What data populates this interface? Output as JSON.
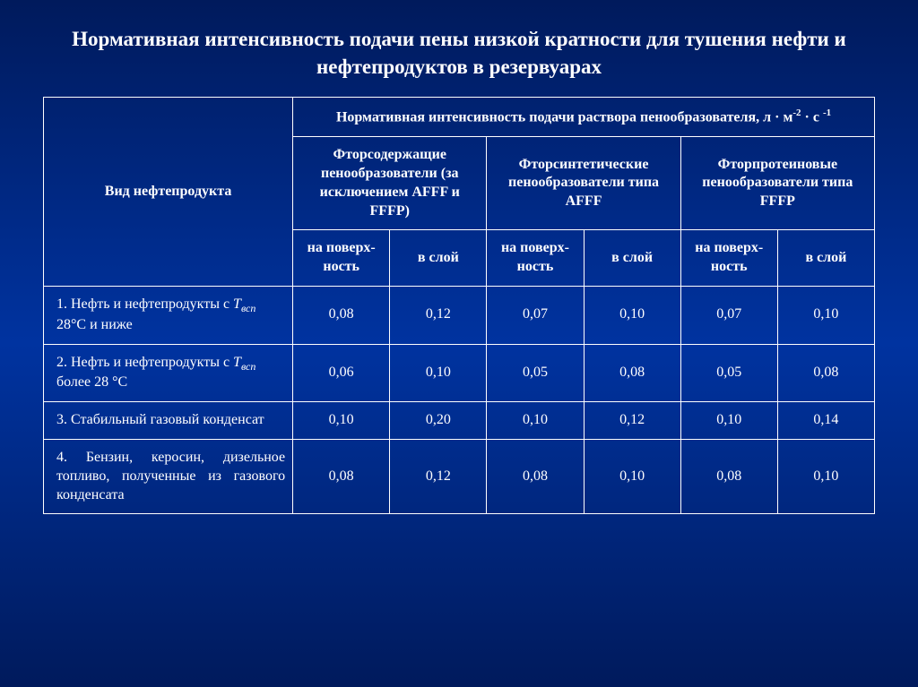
{
  "title": "Нормативная интенсивность подачи пены низкой кратности для тушения нефти и нефтепродуктов в резервуарах",
  "header": {
    "row_label": "Вид нефтепродукта",
    "group_top": "Нормативная интенсивность подачи раствора пенообразователя, л · м",
    "group_top_sup1": "-2",
    "group_top_mid": " · с ",
    "group_top_sup2": "-1",
    "col1": "Фторсодержащие пенообразователи (за исключением AFFF и FFFP)",
    "col2": "Фторсинтетические пенообразователи типа AFFF",
    "col3": "Фторпротеиновые пенообразователи типа FFFP",
    "sub_surface": "на поверх-ность",
    "sub_layer": "в слой"
  },
  "rows": [
    {
      "label_pre": "1. Нефть и нефтепродукты с ",
      "label_italic": "T",
      "label_sub": "всп",
      "label_post": " 28°С и ниже",
      "v": [
        "0,08",
        "0,12",
        "0,07",
        "0,10",
        "0,07",
        "0,10"
      ]
    },
    {
      "label_pre": "2. Нефть и нефтепродукты с ",
      "label_italic": "T",
      "label_sub": "всп",
      "label_post": " более 28 °С",
      "v": [
        "0,06",
        "0,10",
        "0,05",
        "0,08",
        "0,05",
        "0,08"
      ]
    },
    {
      "label_pre": "3. Стабильный газовый конденсат",
      "label_italic": "",
      "label_sub": "",
      "label_post": "",
      "v": [
        "0,10",
        "0,20",
        "0,10",
        "0,12",
        "0,10",
        "0,14"
      ]
    },
    {
      "label_pre": "4. Бензин, керосин, дизельное топливо, полученные из газового конденсата",
      "label_italic": "",
      "label_sub": "",
      "label_post": "",
      "justify": true,
      "v": [
        "0,08",
        "0,12",
        "0,08",
        "0,10",
        "0,08",
        "0,10"
      ]
    }
  ],
  "style": {
    "background_gradient": [
      "#001a5c",
      "#0033a0",
      "#001a5c"
    ],
    "text_color": "#ffffff",
    "border_color": "#ffffff",
    "title_fontsize": 23,
    "cell_fontsize": 16
  }
}
